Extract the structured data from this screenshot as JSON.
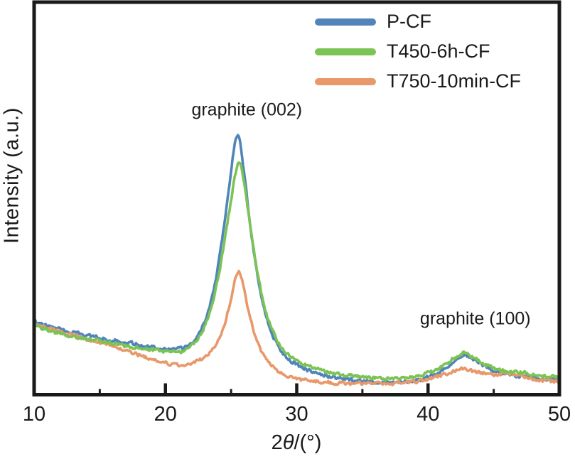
{
  "chart_data": {
    "type": "line",
    "title": "",
    "xlabel_prefix": "2",
    "xlabel_theta": "θ",
    "xlabel_suffix": "/(°)",
    "ylabel": "Intensity (a.u.)",
    "xlim": [
      10,
      50
    ],
    "ylim": [
      0,
      1000
    ],
    "xticks": [
      10,
      20,
      30,
      40,
      50
    ],
    "minor_xticks": [
      15,
      25,
      35,
      45
    ],
    "grid": false,
    "legend_position": "top-right-inside",
    "axis_color": "#1a1a1a",
    "annotations": [
      {
        "text": "graphite (002)",
        "x": 26.2,
        "y": 725
      },
      {
        "text": "graphite (100)",
        "x": 43.6,
        "y": 193
      }
    ],
    "series": [
      {
        "name": "P-CF",
        "color": "#5185b9",
        "points": [
          [
            10,
            187
          ],
          [
            11,
            175
          ],
          [
            12,
            166
          ],
          [
            13,
            158
          ],
          [
            14,
            151
          ],
          [
            15,
            145
          ],
          [
            16,
            139
          ],
          [
            17,
            133
          ],
          [
            18,
            127
          ],
          [
            19,
            122
          ],
          [
            20,
            117
          ],
          [
            20.7,
            115
          ],
          [
            21.3,
            117
          ],
          [
            21.8,
            126
          ],
          [
            22.3,
            142
          ],
          [
            22.8,
            170
          ],
          [
            23.3,
            215
          ],
          [
            23.8,
            285
          ],
          [
            24.2,
            370
          ],
          [
            24.6,
            465
          ],
          [
            25,
            570
          ],
          [
            25.25,
            635
          ],
          [
            25.45,
            676
          ],
          [
            25.7,
            645
          ],
          [
            26,
            565
          ],
          [
            26.3,
            475
          ],
          [
            26.7,
            370
          ],
          [
            27.1,
            285
          ],
          [
            27.5,
            220
          ],
          [
            27.9,
            172
          ],
          [
            28.4,
            134
          ],
          [
            28.9,
            108
          ],
          [
            29.4,
            90
          ],
          [
            30,
            76
          ],
          [
            30.7,
            64
          ],
          [
            31.5,
            54
          ],
          [
            32.5,
            46
          ],
          [
            33.5,
            40
          ],
          [
            34.5,
            36
          ],
          [
            35.5,
            33
          ],
          [
            36.5,
            32
          ],
          [
            37.5,
            32
          ],
          [
            38.5,
            34
          ],
          [
            39.3,
            38
          ],
          [
            40,
            44
          ],
          [
            40.6,
            52
          ],
          [
            41.2,
            63
          ],
          [
            41.8,
            80
          ],
          [
            42.3,
            95
          ],
          [
            42.7,
            103
          ],
          [
            43.1,
            98
          ],
          [
            43.6,
            87
          ],
          [
            44.1,
            76
          ],
          [
            44.6,
            67
          ],
          [
            45.1,
            60
          ],
          [
            45.7,
            54
          ],
          [
            46.3,
            50
          ],
          [
            47,
            47
          ],
          [
            47.6,
            45
          ],
          [
            48.2,
            43
          ],
          [
            49,
            41
          ],
          [
            50,
            40
          ]
        ]
      },
      {
        "name": "T450-6h-CF",
        "color": "#7cc355",
        "points": [
          [
            10,
            176
          ],
          [
            11,
            165
          ],
          [
            12,
            156
          ],
          [
            13,
            149
          ],
          [
            14,
            142
          ],
          [
            15,
            136
          ],
          [
            16,
            130
          ],
          [
            17,
            124
          ],
          [
            18,
            119
          ],
          [
            19,
            114
          ],
          [
            20,
            110
          ],
          [
            20.7,
            108
          ],
          [
            21.3,
            110
          ],
          [
            21.8,
            119
          ],
          [
            22.3,
            134
          ],
          [
            22.8,
            160
          ],
          [
            23.3,
            200
          ],
          [
            23.8,
            260
          ],
          [
            24.2,
            330
          ],
          [
            24.6,
            410
          ],
          [
            25,
            495
          ],
          [
            25.3,
            560
          ],
          [
            25.6,
            602
          ],
          [
            25.85,
            572
          ],
          [
            26.15,
            505
          ],
          [
            26.5,
            420
          ],
          [
            26.9,
            330
          ],
          [
            27.3,
            258
          ],
          [
            27.7,
            204
          ],
          [
            28.1,
            164
          ],
          [
            28.6,
            132
          ],
          [
            29.1,
            110
          ],
          [
            29.6,
            95
          ],
          [
            30.2,
            83
          ],
          [
            31,
            71
          ],
          [
            31.8,
            62
          ],
          [
            32.8,
            54
          ],
          [
            33.8,
            49
          ],
          [
            34.8,
            45
          ],
          [
            35.8,
            43
          ],
          [
            36.8,
            42
          ],
          [
            37.8,
            42
          ],
          [
            38.7,
            45
          ],
          [
            39.4,
            49
          ],
          [
            40,
            55
          ],
          [
            40.6,
            63
          ],
          [
            41.2,
            74
          ],
          [
            41.8,
            89
          ],
          [
            42.3,
            102
          ],
          [
            42.7,
            108
          ],
          [
            43.1,
            103
          ],
          [
            43.6,
            93
          ],
          [
            44.1,
            82
          ],
          [
            44.6,
            73
          ],
          [
            45.1,
            66
          ],
          [
            45.7,
            60
          ],
          [
            46.3,
            56
          ],
          [
            46.9,
            56
          ],
          [
            47.3,
            59
          ],
          [
            47.7,
            53
          ],
          [
            48.2,
            49
          ],
          [
            49,
            46
          ],
          [
            50,
            44
          ]
        ]
      },
      {
        "name": "T750-10min-CF",
        "color": "#e8986a",
        "points": [
          [
            10,
            182
          ],
          [
            11,
            169
          ],
          [
            12,
            159
          ],
          [
            13,
            150
          ],
          [
            14,
            141
          ],
          [
            15,
            133
          ],
          [
            16,
            124
          ],
          [
            17,
            113
          ],
          [
            18,
            101
          ],
          [
            19,
            89
          ],
          [
            19.7,
            82
          ],
          [
            20.4,
            78
          ],
          [
            21,
            77
          ],
          [
            21.6,
            78
          ],
          [
            22.2,
            82
          ],
          [
            22.8,
            90
          ],
          [
            23.3,
            102
          ],
          [
            23.8,
            122
          ],
          [
            24.2,
            150
          ],
          [
            24.6,
            190
          ],
          [
            25,
            245
          ],
          [
            25.3,
            295
          ],
          [
            25.55,
            323
          ],
          [
            25.8,
            298
          ],
          [
            26.1,
            250
          ],
          [
            26.5,
            188
          ],
          [
            27,
            132
          ],
          [
            27.5,
            98
          ],
          [
            28,
            76
          ],
          [
            28.5,
            61
          ],
          [
            29,
            51
          ],
          [
            29.6,
            44
          ],
          [
            30.2,
            39
          ],
          [
            31,
            35
          ],
          [
            32,
            32
          ],
          [
            33,
            30
          ],
          [
            34,
            29
          ],
          [
            35,
            29
          ],
          [
            36,
            28
          ],
          [
            37,
            28
          ],
          [
            38,
            30
          ],
          [
            39,
            33
          ],
          [
            39.8,
            37
          ],
          [
            40.5,
            43
          ],
          [
            41.1,
            50
          ],
          [
            41.7,
            57
          ],
          [
            42.2,
            62
          ],
          [
            42.7,
            65
          ],
          [
            43.2,
            62
          ],
          [
            43.8,
            58
          ],
          [
            44.4,
            54
          ],
          [
            45,
            51
          ],
          [
            45.6,
            52
          ],
          [
            46,
            56
          ],
          [
            46.4,
            51
          ],
          [
            47,
            46
          ],
          [
            47.6,
            42
          ],
          [
            48.2,
            39
          ],
          [
            49,
            35
          ],
          [
            50,
            33
          ]
        ]
      }
    ]
  }
}
